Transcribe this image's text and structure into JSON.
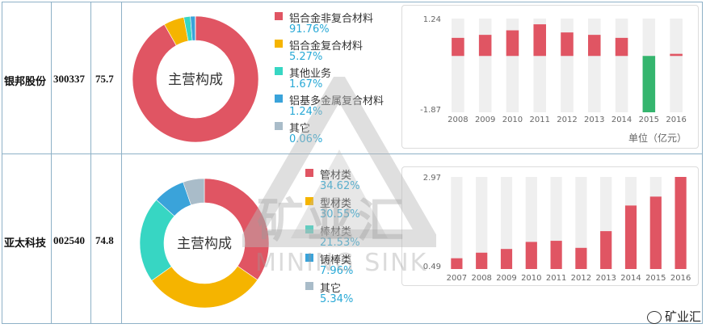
{
  "rows": [
    {
      "company": "银邦股份",
      "code": "300337",
      "score": "75.7"
    },
    {
      "company": "亚太科技",
      "code": "002540",
      "score": "74.8"
    }
  ],
  "unit_label": "单位（亿元）",
  "watermark": {
    "cn": "矿业汇",
    "en": "MINING SINK",
    "source": "矿业汇"
  },
  "colors": {
    "red": "#e05563",
    "yellow": "#f5b400",
    "teal": "#37d6c3",
    "blue": "#3aa3da",
    "grey": "#a9bcc9",
    "green": "#35b56e",
    "bar_bg": "#efefef"
  },
  "chart_data": [
    {
      "type": "pie",
      "style": "donut",
      "center_label": "主营构成",
      "slices": [
        {
          "name": "铝合金非复合材料",
          "value": 91.76,
          "label": "91.76%",
          "color": "#e05563"
        },
        {
          "name": "铝合金复合材料",
          "value": 5.27,
          "label": "5.27%",
          "color": "#f5b400"
        },
        {
          "name": "其他业务",
          "value": 1.67,
          "label": "1.67%",
          "color": "#37d6c3"
        },
        {
          "name": "铝基多金属复合材料",
          "value": 1.24,
          "label": "1.24%",
          "color": "#3aa3da"
        },
        {
          "name": "其它",
          "value": 0.06,
          "label": "0.06%",
          "color": "#a9bcc9"
        }
      ]
    },
    {
      "type": "bar",
      "categories": [
        "2008",
        "2009",
        "2010",
        "2011",
        "2012",
        "2013",
        "2014",
        "2015",
        "2016"
      ],
      "values": [
        0.6,
        0.7,
        0.85,
        1.05,
        0.78,
        0.7,
        0.6,
        -1.87,
        0.07
      ],
      "ylim": [
        -1.87,
        1.24
      ],
      "ytick_labels": [
        "1.24",
        "-1.87"
      ],
      "yticks": [
        1.24,
        -1.87
      ],
      "positive_color": "#e05563",
      "negative_color": "#35b56e"
    },
    {
      "type": "pie",
      "style": "donut",
      "center_label": "主营构成",
      "slices": [
        {
          "name": "管材类",
          "value": 34.62,
          "label": "34.62%",
          "color": "#e05563"
        },
        {
          "name": "型材类",
          "value": 30.55,
          "label": "30.55%",
          "color": "#f5b400"
        },
        {
          "name": "棒材类",
          "value": 21.53,
          "label": "21.53%",
          "color": "#37d6c3"
        },
        {
          "name": "铸棒类",
          "value": 7.96,
          "label": "7.96%",
          "color": "#3aa3da"
        },
        {
          "name": "其它",
          "value": 5.34,
          "label": "5.34%",
          "color": "#a9bcc9"
        }
      ]
    },
    {
      "type": "bar",
      "categories": [
        "2007",
        "2008",
        "2009",
        "2010",
        "2011",
        "2012",
        "2013",
        "2014",
        "2015",
        "2016"
      ],
      "values": [
        0.78,
        0.93,
        1.03,
        1.22,
        1.25,
        1.06,
        1.51,
        2.2,
        2.44,
        2.97
      ],
      "ylim": [
        0.49,
        2.97
      ],
      "ytick_labels": [
        "2.97",
        "0.49"
      ],
      "yticks": [
        2.97,
        0.49
      ],
      "positive_color": "#e05563",
      "negative_color": "#35b56e"
    }
  ]
}
